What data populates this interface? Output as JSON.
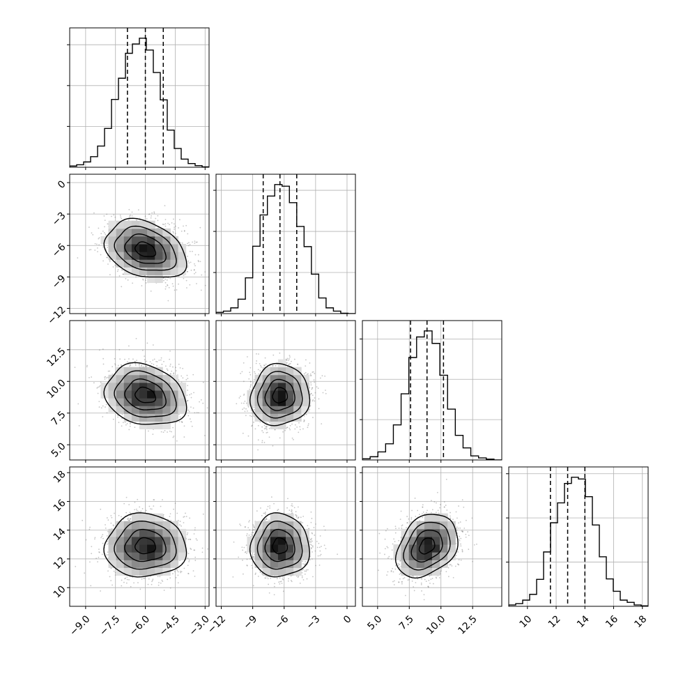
{
  "chart_data": {
    "type": "corner",
    "params": 4,
    "grid": true,
    "colors": {
      "hist": "#000000",
      "grid": "#b0b0b0",
      "points": "#7f7f7f",
      "contour": "#000000"
    },
    "axes": [
      {
        "lim": [
          -9.8,
          -2.8
        ],
        "ticks": [
          -9.0,
          -7.5,
          -6.0,
          -4.5,
          -3.0
        ],
        "labels": [
          "−9.0",
          "−7.5",
          "−6.0",
          "−4.5",
          "−3.0"
        ],
        "hist_ticks": [
          10,
          20,
          30
        ]
      },
      {
        "lim": [
          -12.5,
          0.8
        ],
        "ticks": [
          -12,
          -9,
          -6,
          -3,
          0
        ],
        "labels": [
          "−12",
          "−9",
          "−6",
          "−3",
          "0"
        ],
        "hist_ticks": [
          10,
          20,
          30
        ]
      },
      {
        "lim": [
          3.8,
          14.8
        ],
        "ticks": [
          5.0,
          7.5,
          10.0,
          12.5
        ],
        "labels": [
          "5.0",
          "7.5",
          "10.0",
          "12.5"
        ],
        "hist_ticks": [
          10,
          20,
          30
        ]
      },
      {
        "lim": [
          8.7,
          18.4
        ],
        "ticks": [
          10,
          12,
          14,
          16,
          18
        ],
        "labels": [
          "10",
          "12",
          "14",
          "16",
          "18"
        ],
        "hist_ticks": [
          10,
          20,
          30
        ]
      }
    ],
    "histograms": [
      {
        "edges": [
          -9.8,
          -2.8
        ],
        "counts": [
          0.3,
          0.6,
          1.3,
          2.6,
          5.2,
          9.5,
          16.6,
          21.8,
          27.9,
          30.2,
          31.6,
          28.7,
          23.2,
          16.5,
          9.1,
          4.6,
          2.0,
          0.9,
          0.4,
          0.1
        ],
        "ymax": 31.6,
        "quantiles": [
          -6.9,
          -6.0,
          -5.1
        ]
      },
      {
        "edges": [
          -12.5,
          0.8
        ],
        "counts": [
          0.3,
          0.6,
          1.4,
          3.5,
          8.7,
          16.4,
          24.0,
          28.6,
          31.4,
          31.0,
          27.0,
          21.2,
          16.3,
          9.6,
          3.8,
          1.4,
          0.6,
          0.1,
          0.0
        ],
        "ymax": 31.4,
        "quantiles": [
          -8.0,
          -6.4,
          -4.8
        ]
      },
      {
        "edges": [
          3.8,
          14.8
        ],
        "counts": [
          0.3,
          0.8,
          2.0,
          4.0,
          8.7,
          16.4,
          25.4,
          30.5,
          32.0,
          28.9,
          21.0,
          12.6,
          6.1,
          3.0,
          1.0,
          0.5,
          0.2,
          0.0
        ],
        "ymax": 32.0,
        "quantiles": [
          7.6,
          8.9,
          10.2
        ]
      },
      {
        "edges": [
          8.7,
          18.4
        ],
        "counts": [
          0.3,
          0.6,
          1.4,
          2.7,
          6.1,
          12.3,
          18.9,
          23.4,
          27.8,
          29.2,
          28.8,
          24.8,
          18.4,
          11.2,
          6.2,
          3.4,
          1.4,
          0.9,
          0.3,
          0.1
        ],
        "ymax": 29.2,
        "quantiles": [
          11.6,
          12.8,
          14.0
        ]
      }
    ],
    "pairs": [
      {
        "row": 1,
        "col": 0,
        "mean": [
          -6.0,
          -6.4
        ],
        "sd": [
          1.02,
          1.4
        ],
        "corr": -0.3
      },
      {
        "row": 2,
        "col": 0,
        "mean": [
          -6.0,
          8.9
        ],
        "sd": [
          1.02,
          1.21
        ],
        "corr": -0.2
      },
      {
        "row": 2,
        "col": 1,
        "mean": [
          -6.4,
          8.9
        ],
        "sd": [
          1.4,
          1.21
        ],
        "corr": 0.05
      },
      {
        "row": 3,
        "col": 0,
        "mean": [
          -6.0,
          12.9
        ],
        "sd": [
          1.02,
          1.1
        ],
        "corr": 0.0
      },
      {
        "row": 3,
        "col": 1,
        "mean": [
          -6.4,
          12.9
        ],
        "sd": [
          1.4,
          1.1
        ],
        "corr": 0.0
      },
      {
        "row": 3,
        "col": 2,
        "mean": [
          8.9,
          12.9
        ],
        "sd": [
          1.21,
          1.1
        ],
        "corr": 0.3
      }
    ]
  }
}
